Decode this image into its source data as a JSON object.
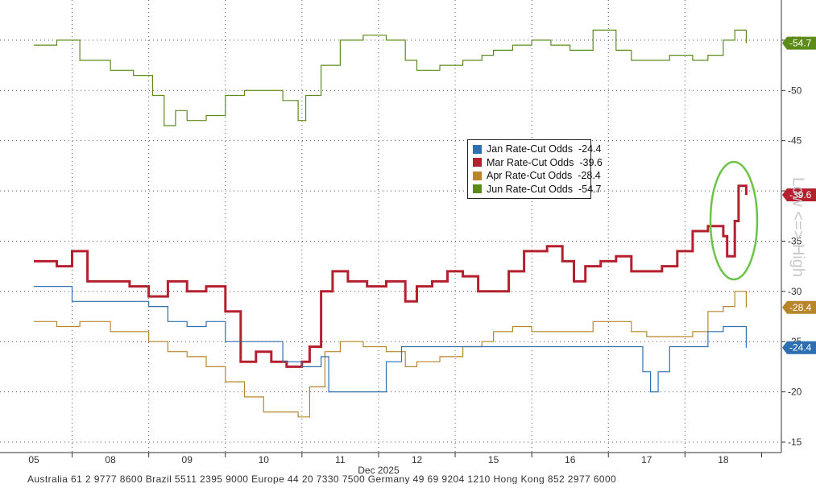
{
  "chart_data": {
    "type": "line",
    "title": "",
    "xlabel": "Dec 2025",
    "ylabel": "",
    "x_ticks": [
      "05",
      "08",
      "09",
      "10",
      "11",
      "12",
      "15",
      "16",
      "17",
      "18"
    ],
    "y_ticks": [
      "-15",
      "-20",
      "-25",
      "-30",
      "-35",
      "-40",
      "-45",
      "-50",
      "-55"
    ],
    "ylim": [
      -15,
      -59
    ],
    "y_axis_side": "right",
    "grid": true,
    "legend_position": "upper-center",
    "series": [
      {
        "name": "Jun Rate-Cut Odds",
        "legend_label": "Jun Rate-Cut Odds",
        "last_value": -54.7,
        "last_label": "-54.7",
        "color": "#5b8c1a",
        "points": [
          [
            0,
            -54.5
          ],
          [
            0.3,
            -55
          ],
          [
            0.6,
            -53
          ],
          [
            1,
            -52
          ],
          [
            1.3,
            -51.5
          ],
          [
            1.55,
            -49.5
          ],
          [
            1.7,
            -46.5
          ],
          [
            1.85,
            -48
          ],
          [
            2,
            -47
          ],
          [
            2.25,
            -47.5
          ],
          [
            2.5,
            -49.5
          ],
          [
            2.75,
            -50
          ],
          [
            3,
            -50
          ],
          [
            3.25,
            -49
          ],
          [
            3.45,
            -47
          ],
          [
            3.55,
            -49.5
          ],
          [
            3.75,
            -52.5
          ],
          [
            4,
            -55
          ],
          [
            4.3,
            -55.5
          ],
          [
            4.6,
            -55
          ],
          [
            4.85,
            -53
          ],
          [
            5,
            -52
          ],
          [
            5.3,
            -52.5
          ],
          [
            5.6,
            -53
          ],
          [
            5.85,
            -53.5
          ],
          [
            6,
            -54
          ],
          [
            6.25,
            -54.5
          ],
          [
            6.5,
            -55
          ],
          [
            6.75,
            -54.5
          ],
          [
            7,
            -54
          ],
          [
            7.3,
            -56
          ],
          [
            7.6,
            -54
          ],
          [
            7.8,
            -53
          ],
          [
            8,
            -53
          ],
          [
            8.3,
            -53.5
          ],
          [
            8.6,
            -53
          ],
          [
            8.8,
            -53.5
          ],
          [
            9,
            -55
          ],
          [
            9.15,
            -56
          ],
          [
            9.3,
            -54.7
          ]
        ]
      },
      {
        "name": "Mar Rate-Cut Odds",
        "legend_label": "Mar Rate-Cut Odds",
        "last_value": -39.6,
        "last_label": "-39.6",
        "color": "#b5202e",
        "points": [
          [
            0,
            -33
          ],
          [
            0.3,
            -32.5
          ],
          [
            0.5,
            -34
          ],
          [
            0.7,
            -31
          ],
          [
            1,
            -31
          ],
          [
            1.25,
            -30.5
          ],
          [
            1.5,
            -29.5
          ],
          [
            1.75,
            -31
          ],
          [
            2,
            -30
          ],
          [
            2.25,
            -30.5
          ],
          [
            2.5,
            -28
          ],
          [
            2.7,
            -23
          ],
          [
            2.9,
            -24
          ],
          [
            3.1,
            -23
          ],
          [
            3.3,
            -22.5
          ],
          [
            3.5,
            -23
          ],
          [
            3.6,
            -24.5
          ],
          [
            3.75,
            -30
          ],
          [
            3.9,
            -32
          ],
          [
            4.1,
            -31
          ],
          [
            4.35,
            -30.5
          ],
          [
            4.6,
            -31
          ],
          [
            4.85,
            -29
          ],
          [
            5,
            -30.5
          ],
          [
            5.2,
            -31
          ],
          [
            5.4,
            -32
          ],
          [
            5.6,
            -31.5
          ],
          [
            5.8,
            -30
          ],
          [
            6,
            -30
          ],
          [
            6.2,
            -32
          ],
          [
            6.4,
            -34
          ],
          [
            6.7,
            -34.5
          ],
          [
            6.9,
            -33
          ],
          [
            7.05,
            -31
          ],
          [
            7.2,
            -32.5
          ],
          [
            7.4,
            -33
          ],
          [
            7.6,
            -33.5
          ],
          [
            7.8,
            -32
          ],
          [
            8,
            -32
          ],
          [
            8.2,
            -32.5
          ],
          [
            8.4,
            -34
          ],
          [
            8.6,
            -36
          ],
          [
            8.8,
            -36.5
          ],
          [
            9,
            -35.5
          ],
          [
            9.05,
            -33.5
          ],
          [
            9.15,
            -37
          ],
          [
            9.2,
            -40.5
          ],
          [
            9.3,
            -39.6
          ]
        ]
      },
      {
        "name": "Apr Rate-Cut Odds",
        "legend_label": "Apr Rate-Cut Odds",
        "last_value": -28.4,
        "last_label": "-28.4",
        "color": "#b8862a",
        "points": [
          [
            0,
            -27
          ],
          [
            0.3,
            -26.5
          ],
          [
            0.6,
            -27
          ],
          [
            1,
            -26
          ],
          [
            1.25,
            -26
          ],
          [
            1.5,
            -25
          ],
          [
            1.75,
            -24
          ],
          [
            2,
            -23.5
          ],
          [
            2.25,
            -22.5
          ],
          [
            2.5,
            -21
          ],
          [
            2.75,
            -19.5
          ],
          [
            3,
            -18
          ],
          [
            3.25,
            -18
          ],
          [
            3.45,
            -17.5
          ],
          [
            3.6,
            -20.5
          ],
          [
            3.8,
            -24
          ],
          [
            4,
            -25
          ],
          [
            4.3,
            -24.5
          ],
          [
            4.6,
            -24
          ],
          [
            4.85,
            -22.5
          ],
          [
            5,
            -23
          ],
          [
            5.3,
            -23.5
          ],
          [
            5.6,
            -24.5
          ],
          [
            5.85,
            -25
          ],
          [
            6,
            -26
          ],
          [
            6.25,
            -26.5
          ],
          [
            6.5,
            -26
          ],
          [
            6.75,
            -26
          ],
          [
            7,
            -26
          ],
          [
            7.3,
            -27
          ],
          [
            7.6,
            -27
          ],
          [
            7.8,
            -26
          ],
          [
            8,
            -25.5
          ],
          [
            8.3,
            -25.5
          ],
          [
            8.6,
            -26
          ],
          [
            8.8,
            -28
          ],
          [
            9,
            -28.5
          ],
          [
            9.15,
            -30
          ],
          [
            9.3,
            -28.4
          ]
        ]
      },
      {
        "name": "Jan Rate-Cut Odds",
        "legend_label": "Jan Rate-Cut Odds",
        "last_value": -24.4,
        "last_label": "-24.4",
        "color": "#2f6fb0",
        "points": [
          [
            0,
            -30.5
          ],
          [
            0.4,
            -30.5
          ],
          [
            0.5,
            -29
          ],
          [
            1,
            -29
          ],
          [
            1.5,
            -28.5
          ],
          [
            1.75,
            -27
          ],
          [
            2,
            -26.5
          ],
          [
            2.25,
            -27
          ],
          [
            2.5,
            -25
          ],
          [
            2.75,
            -25
          ],
          [
            3,
            -25
          ],
          [
            3.25,
            -23
          ],
          [
            3.5,
            -22.5
          ],
          [
            3.75,
            -23.5
          ],
          [
            3.85,
            -20
          ],
          [
            4.5,
            -20
          ],
          [
            4.6,
            -23
          ],
          [
            4.8,
            -24.5
          ],
          [
            5,
            -24.5
          ],
          [
            5.5,
            -24.5
          ],
          [
            5.8,
            -24.5
          ],
          [
            6,
            -24.5
          ],
          [
            6.5,
            -24.5
          ],
          [
            7,
            -24.5
          ],
          [
            7.5,
            -24.5
          ],
          [
            7.9,
            -24.5
          ],
          [
            7.95,
            -22
          ],
          [
            8.05,
            -20
          ],
          [
            8.15,
            -22
          ],
          [
            8.3,
            -24.5
          ],
          [
            8.6,
            -24.5
          ],
          [
            8.8,
            -26
          ],
          [
            9,
            -26.5
          ],
          [
            9.2,
            -26.5
          ],
          [
            9.3,
            -24.4
          ]
        ]
      }
    ]
  },
  "side_label": "Low <=> High",
  "footer_text": "Australia 61 2 9777 8600 Brazil 5511 2395 9000 Europe 44 20 7330 7500 Germany 49 69 9204 1210 Hong Kong 852 2977 6000"
}
